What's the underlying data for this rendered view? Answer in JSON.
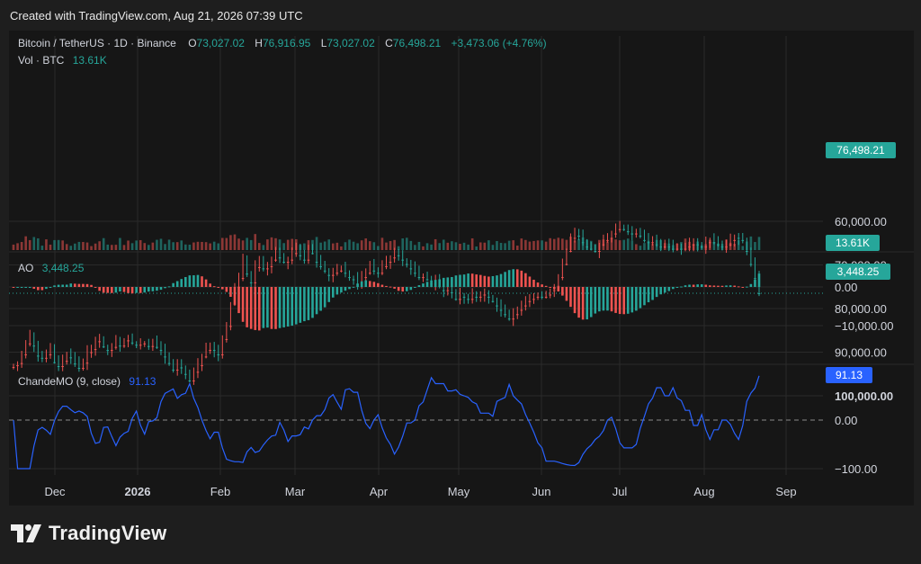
{
  "page": {
    "created_text": "Created with TradingView.com, Aug 21, 2026 07:39 UTC",
    "brand_name": "TradingView"
  },
  "header": {
    "symbol": "Bitcoin / TetherUS · 1D · Binance",
    "o_label": "O",
    "o_value": "73,027.02",
    "h_label": "H",
    "h_value": "76,916.95",
    "l_label": "L",
    "l_value": "73,027.02",
    "c_label": "C",
    "c_value": "76,498.21",
    "change": "+3,473.06 (+4.76%)",
    "vol_label": "Vol · BTC",
    "vol_value": "13.61K"
  },
  "ao_header": {
    "label": "AO",
    "value": "3,448.25"
  },
  "cmo_header": {
    "label": "ChandeMO (9, close)",
    "value": "91.13"
  },
  "colors": {
    "up": "#26a69a",
    "down": "#ef5350",
    "cmo": "#2962ff",
    "grid": "#2a2a2a",
    "text": "#d1d4dc",
    "bg": "#161616"
  },
  "chart_data": [
    {
      "type": "candlestick",
      "title": "Bitcoin / TetherUS · 1D · Binance",
      "x_ticks": [
        "Dec",
        "2026",
        "Feb",
        "Mar",
        "Apr",
        "May",
        "Jun",
        "Jul",
        "Aug",
        "Sep"
      ],
      "y_ticks": [
        "100,000.00",
        "90,000.00",
        "80,000.00",
        "70,000.00",
        "60,000.00"
      ],
      "ylim": [
        58000,
        102000
      ],
      "last_price_label": "76,498.21",
      "last_price": 76498.21,
      "close_series": [
        93000,
        92500,
        90500,
        88000,
        86500,
        88500,
        90800,
        91300,
        90500,
        89000,
        92300,
        93200,
        92000,
        90500,
        91200,
        92600,
        93600,
        92400,
        90000,
        89300,
        87500,
        86800,
        88700,
        89500,
        88800,
        87600,
        88500,
        87300,
        87100,
        87800,
        88300,
        88000,
        87800,
        88600,
        87500,
        88800,
        89500,
        91000,
        92500,
        94000,
        92500,
        93500,
        95000,
        96500,
        94500,
        93000,
        91000,
        89500,
        89000,
        89500,
        90500,
        87000,
        84000,
        79000,
        75000,
        73000,
        69000,
        72000,
        74000,
        70500,
        69500,
        70800,
        70300,
        68800,
        67300,
        68300,
        69300,
        68800,
        67300,
        66300,
        67800,
        68800,
        66800,
        67300,
        69300,
        70300,
        71300,
        72300,
        71800,
        71300,
        70800,
        71800,
        72800,
        73300,
        74300,
        72800,
        71800,
        70300,
        71300,
        71800,
        70300,
        69300,
        68300,
        67300,
        67800,
        68800,
        69800,
        70800,
        71800,
        72800,
        72300,
        73300,
        74300,
        73800,
        74800,
        75800,
        75300,
        76300,
        77800,
        76800,
        77300,
        77800,
        76800,
        77300,
        76800,
        76300,
        77300,
        78300,
        79300,
        80300,
        81300,
        82300,
        81300,
        80300,
        79300,
        78300,
        77800,
        77300,
        76800,
        77300,
        76800,
        75800,
        74800,
        72800,
        69800,
        66800,
        63800,
        62300,
        63300,
        64800,
        65800,
        66300,
        66800,
        65300,
        64300,
        63800,
        62800,
        61800,
        61300,
        61800,
        62300,
        62800,
        62300,
        63300,
        64300,
        64800,
        64300,
        65300,
        65800,
        65300,
        65800,
        66300,
        65800,
        66300,
        65800,
        65300,
        64800,
        65300,
        65800,
        64800,
        64300,
        64800,
        65300,
        65800,
        65300,
        64300,
        63800,
        63800,
        64300,
        66800,
        69800,
        73027,
        76498.21
      ]
    },
    {
      "type": "bar",
      "title": "Vol · BTC",
      "last_value_label": "13.61K"
    },
    {
      "type": "bar",
      "title": "AO",
      "y_ticks": [
        "0.00",
        "−10,000.00"
      ],
      "ylim": [
        -16000,
        6000
      ],
      "last_value_label": "3,448.25"
    },
    {
      "type": "line",
      "title": "ChandeMO (9, close)",
      "y_ticks": [
        "0.00",
        "−100.00"
      ],
      "ylim": [
        -110,
        110
      ],
      "last_value_label": "91.13"
    }
  ]
}
